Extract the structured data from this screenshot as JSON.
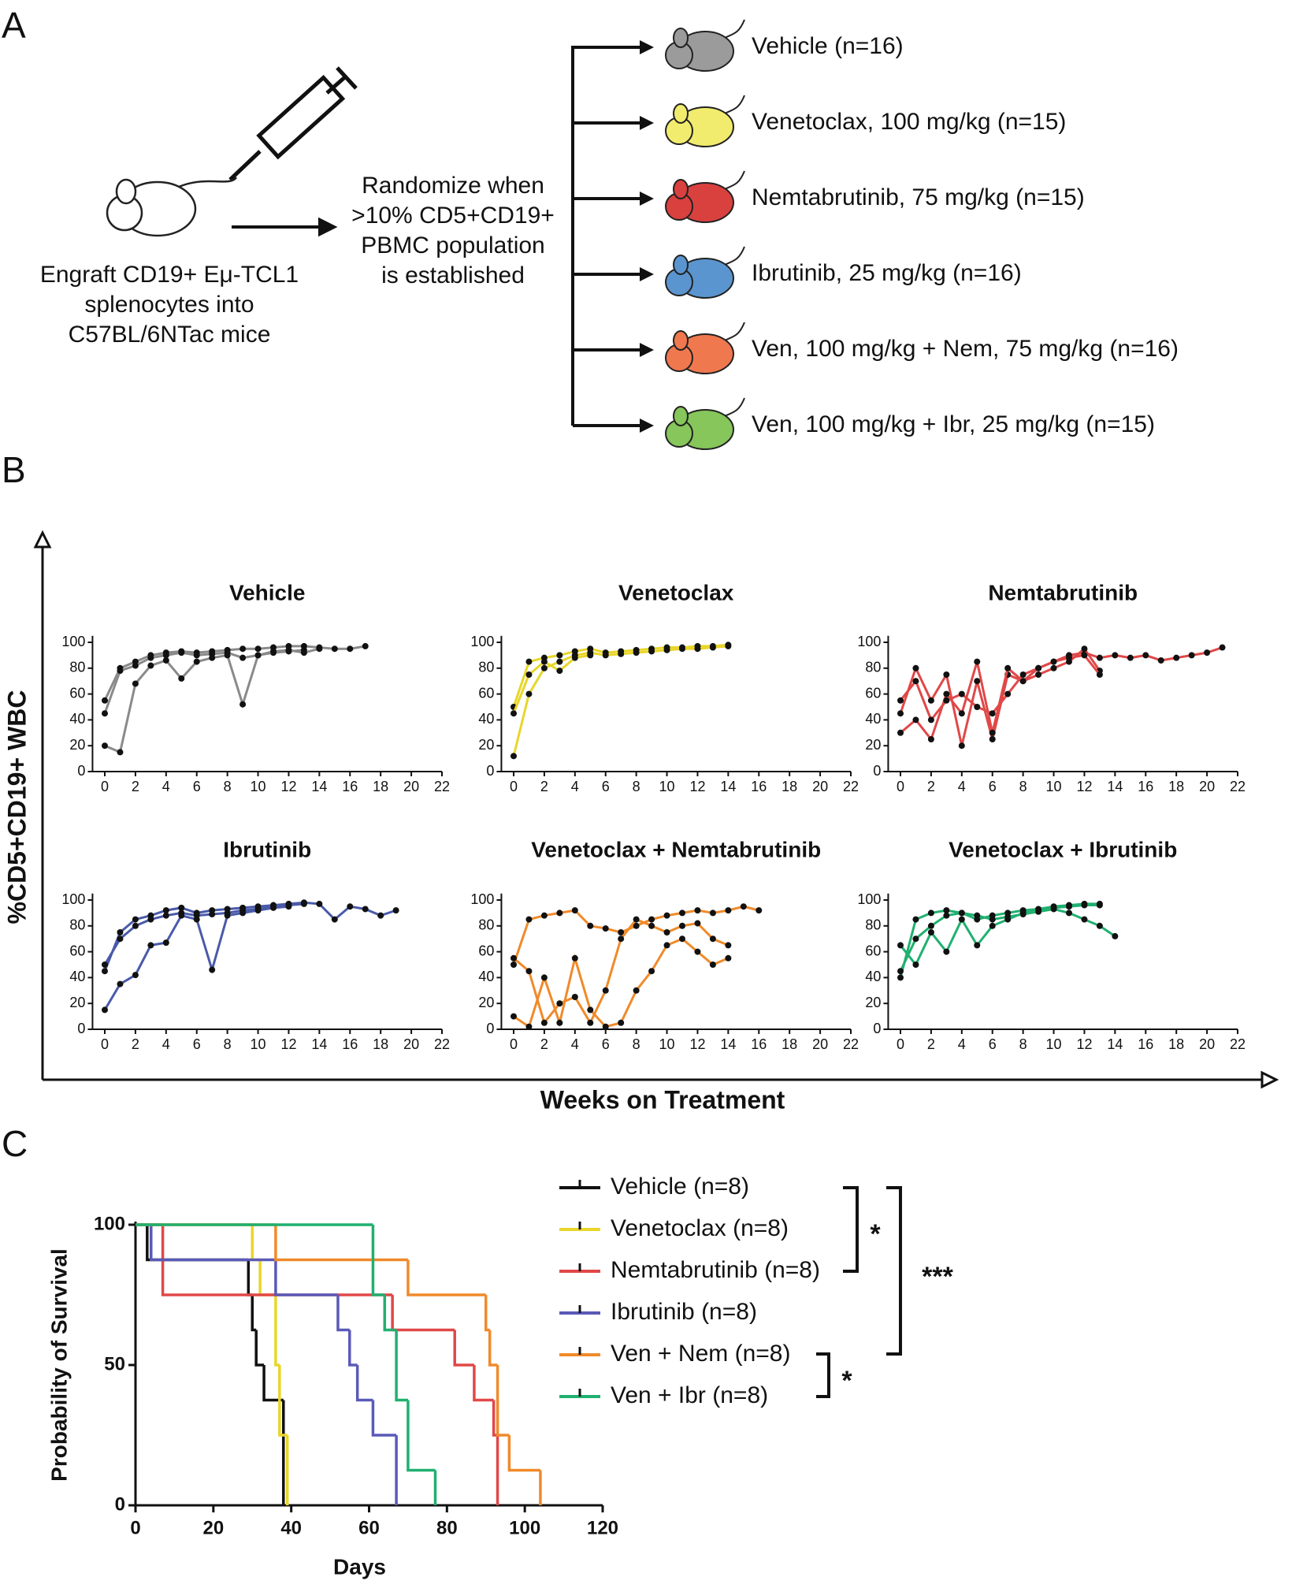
{
  "panel_labels": [
    "A",
    "B",
    "C"
  ],
  "diagram": {
    "engraft_lines": [
      "Engraft CD19+ Eμ-TCL1",
      "splenocytes into",
      "C57BL/6NTac mice"
    ],
    "randomize_lines": [
      "Randomize when",
      ">10% CD5+CD19+",
      "PBMC population",
      "is established"
    ],
    "groups": [
      {
        "label": "Vehicle (n=16)",
        "color": "#9b9b9b"
      },
      {
        "label": "Venetoclax, 100 mg/kg (n=15)",
        "color": "#f2ec6e"
      },
      {
        "label": "Nemtabrutinib, 75 mg/kg (n=15)",
        "color": "#d9413f"
      },
      {
        "label": "Ibrutinib, 25 mg/kg (n=16)",
        "color": "#5b95cf"
      },
      {
        "label": "Ven, 100 mg/kg + Nem, 75 mg/kg (n=16)",
        "color": "#f0784f"
      },
      {
        "label": "Ven, 100 mg/kg + Ibr, 25 mg/kg (n=15)",
        "color": "#86c65a"
      }
    ]
  },
  "panel_b": {
    "ylabel": "%CD5+CD19+ WBC",
    "xlabel": "Weeks on Treatment"
  },
  "chart_data": [
    {
      "type": "line",
      "title": "Vehicle",
      "color": "#8a8a8a",
      "xlim": [
        -0.8,
        22
      ],
      "ylim": [
        0,
        105
      ],
      "xticks": [
        0,
        2,
        4,
        6,
        8,
        10,
        12,
        14,
        16,
        18,
        20,
        22
      ],
      "yticks": [
        0,
        20,
        40,
        60,
        80,
        100
      ],
      "series": [
        {
          "x": [
            0,
            1,
            2,
            3,
            4,
            5,
            6,
            7,
            8,
            9,
            10,
            11,
            12,
            13,
            14,
            15,
            16,
            17
          ],
          "values": [
            55,
            80,
            85,
            90,
            92,
            93,
            92,
            93,
            94,
            95,
            95,
            96,
            97,
            97,
            96,
            95,
            95,
            97
          ]
        },
        {
          "x": [
            0,
            1,
            2,
            3,
            4,
            5,
            6,
            7,
            8,
            9,
            10,
            11,
            12,
            13
          ],
          "values": [
            20,
            15,
            68,
            82,
            86,
            72,
            85,
            88,
            90,
            52,
            90,
            92,
            93,
            94
          ]
        },
        {
          "x": [
            0,
            1,
            2,
            3,
            4,
            5,
            6,
            7,
            8,
            9,
            10,
            11,
            12,
            13,
            14
          ],
          "values": [
            45,
            78,
            82,
            88,
            90,
            92,
            90,
            91,
            92,
            88,
            90,
            93,
            94,
            92,
            95
          ]
        }
      ]
    },
    {
      "type": "line",
      "title": "Venetoclax",
      "color": "#e8d62a",
      "xlim": [
        -0.8,
        22
      ],
      "ylim": [
        0,
        105
      ],
      "xticks": [
        0,
        2,
        4,
        6,
        8,
        10,
        12,
        14,
        16,
        18,
        20,
        22
      ],
      "yticks": [
        0,
        20,
        40,
        60,
        80,
        100
      ],
      "series": [
        {
          "x": [
            0,
            1,
            2,
            3,
            4,
            5,
            6,
            7,
            8,
            9,
            10,
            11,
            12,
            13,
            14
          ],
          "values": [
            50,
            85,
            88,
            90,
            93,
            95,
            92,
            93,
            94,
            95,
            96,
            96,
            97,
            97,
            98
          ]
        },
        {
          "x": [
            0,
            1,
            2,
            3,
            4,
            5,
            6,
            7,
            8,
            9,
            10,
            11,
            12,
            13,
            14
          ],
          "values": [
            12,
            60,
            80,
            85,
            90,
            92,
            90,
            91,
            92,
            93,
            94,
            95,
            95,
            96,
            97
          ]
        },
        {
          "x": [
            0,
            1,
            2,
            3,
            4,
            5
          ],
          "values": [
            45,
            75,
            85,
            78,
            88,
            90
          ]
        }
      ]
    },
    {
      "type": "line",
      "title": "Nemtabrutinib",
      "color": "#e04848",
      "xlim": [
        -0.8,
        22
      ],
      "ylim": [
        0,
        105
      ],
      "xticks": [
        0,
        2,
        4,
        6,
        8,
        10,
        12,
        14,
        16,
        18,
        20,
        22
      ],
      "yticks": [
        0,
        20,
        40,
        60,
        80,
        100
      ],
      "series": [
        {
          "x": [
            0,
            1,
            2,
            3,
            4,
            5,
            6,
            7,
            8,
            9,
            10,
            11,
            12,
            13,
            14,
            15,
            16,
            17,
            18,
            19,
            20,
            21
          ],
          "values": [
            45,
            80,
            55,
            75,
            20,
            70,
            25,
            75,
            70,
            80,
            85,
            90,
            92,
            88,
            90,
            88,
            90,
            86,
            88,
            90,
            92,
            96
          ]
        },
        {
          "x": [
            0,
            1,
            2,
            3,
            4,
            5,
            6,
            7,
            8,
            9,
            10,
            11,
            12,
            13
          ],
          "values": [
            30,
            40,
            25,
            60,
            45,
            85,
            30,
            80,
            70,
            75,
            80,
            85,
            95,
            78
          ]
        },
        {
          "x": [
            0,
            1,
            2,
            3,
            4,
            5,
            6,
            7,
            8,
            9,
            10,
            11,
            12,
            13
          ],
          "values": [
            55,
            70,
            40,
            55,
            60,
            50,
            45,
            60,
            75,
            80,
            85,
            88,
            90,
            75
          ]
        }
      ]
    },
    {
      "type": "line",
      "title": "Ibrutinib",
      "color": "#4a5aaa",
      "xlim": [
        -0.8,
        22
      ],
      "ylim": [
        0,
        105
      ],
      "xticks": [
        0,
        2,
        4,
        6,
        8,
        10,
        12,
        14,
        16,
        18,
        20,
        22
      ],
      "yticks": [
        0,
        20,
        40,
        60,
        80,
        100
      ],
      "series": [
        {
          "x": [
            0,
            1,
            2,
            3,
            4,
            5,
            6,
            7,
            8,
            9,
            10,
            11,
            12,
            13,
            14,
            15,
            16,
            17,
            18,
            19
          ],
          "values": [
            45,
            75,
            85,
            88,
            92,
            94,
            90,
            92,
            93,
            94,
            95,
            96,
            97,
            98,
            97,
            85,
            95,
            93,
            88,
            92
          ]
        },
        {
          "x": [
            0,
            1,
            2,
            3,
            4,
            5,
            6,
            7,
            8,
            9,
            10,
            11,
            12
          ],
          "values": [
            15,
            35,
            42,
            65,
            67,
            88,
            85,
            46,
            88,
            90,
            92,
            94,
            95
          ]
        },
        {
          "x": [
            0,
            1,
            2,
            3,
            4,
            5,
            6,
            7,
            8,
            9,
            10,
            11,
            12,
            13
          ],
          "values": [
            50,
            70,
            80,
            85,
            88,
            90,
            88,
            89,
            90,
            92,
            93,
            95,
            96,
            97
          ]
        }
      ]
    },
    {
      "type": "line",
      "title": "Venetoclax + Nemtabrutinib",
      "color": "#f08a2a",
      "xlim": [
        -0.8,
        22
      ],
      "ylim": [
        0,
        105
      ],
      "xticks": [
        0,
        2,
        4,
        6,
        8,
        10,
        12,
        14,
        16,
        18,
        20,
        22
      ],
      "yticks": [
        0,
        20,
        40,
        60,
        80,
        100
      ],
      "series": [
        {
          "x": [
            0,
            1,
            2,
            3,
            4,
            5,
            6,
            7,
            8,
            9,
            10,
            11,
            12,
            13,
            14,
            15,
            16
          ],
          "values": [
            50,
            85,
            88,
            90,
            92,
            80,
            78,
            75,
            80,
            85,
            88,
            90,
            92,
            90,
            92,
            95,
            92
          ]
        },
        {
          "x": [
            0,
            1,
            2,
            3,
            4,
            5,
            6,
            7,
            8,
            9,
            10,
            11,
            12,
            13,
            14
          ],
          "values": [
            10,
            2,
            40,
            5,
            55,
            15,
            2,
            5,
            30,
            45,
            65,
            70,
            60,
            50,
            55
          ]
        },
        {
          "x": [
            0,
            1,
            2,
            3,
            4,
            5,
            6,
            7,
            8,
            9,
            10,
            11,
            12,
            13,
            14
          ],
          "values": [
            55,
            45,
            5,
            20,
            25,
            5,
            30,
            70,
            85,
            80,
            75,
            80,
            82,
            70,
            65
          ]
        }
      ]
    },
    {
      "type": "line",
      "title": "Venetoclax + Ibrutinib",
      "color": "#20b070",
      "xlim": [
        -0.8,
        22
      ],
      "ylim": [
        0,
        105
      ],
      "xticks": [
        0,
        2,
        4,
        6,
        8,
        10,
        12,
        14,
        16,
        18,
        20,
        22
      ],
      "yticks": [
        0,
        20,
        40,
        60,
        80,
        100
      ],
      "series": [
        {
          "x": [
            0,
            1,
            2,
            3,
            4,
            5,
            6,
            7,
            8,
            9,
            10,
            11,
            12,
            13,
            14
          ],
          "values": [
            40,
            85,
            90,
            92,
            90,
            88,
            85,
            87,
            89,
            91,
            93,
            90,
            85,
            80,
            72
          ]
        },
        {
          "x": [
            0,
            1,
            2,
            3,
            4,
            5,
            6,
            7,
            8,
            9,
            10,
            11,
            12,
            13
          ],
          "values": [
            65,
            50,
            75,
            60,
            85,
            65,
            80,
            85,
            90,
            92,
            94,
            95,
            96,
            96
          ]
        },
        {
          "x": [
            0,
            1,
            2,
            3,
            4,
            5,
            6,
            7,
            8,
            9,
            10,
            11,
            12,
            13
          ],
          "values": [
            45,
            70,
            80,
            88,
            90,
            85,
            88,
            90,
            92,
            93,
            95,
            96,
            97,
            97
          ]
        }
      ]
    },
    {
      "type": "step",
      "ylabel": "Probability of Survival",
      "xlabel": "Days",
      "xlim": [
        0,
        120
      ],
      "ylim": [
        0,
        100
      ],
      "xticks": [
        0,
        20,
        40,
        60,
        80,
        100,
        120
      ],
      "yticks": [
        0,
        50,
        100
      ],
      "annotations": [
        "*",
        "***",
        "*"
      ],
      "series": [
        {
          "name": "Vehicle (n=8)",
          "color": "#111111",
          "x": [
            0,
            3,
            29,
            30,
            31,
            33,
            38
          ],
          "values": [
            100,
            87.5,
            75,
            62.5,
            50,
            37.5,
            0
          ]
        },
        {
          "name": "Venetoclax (n=8)",
          "color": "#e8d62a",
          "x": [
            0,
            30,
            32,
            36,
            37,
            39
          ],
          "values": [
            100,
            87.5,
            75,
            50,
            25,
            0
          ]
        },
        {
          "name": "Nemtabrutinib (n=8)",
          "color": "#e04848",
          "x": [
            0,
            7,
            66,
            82,
            87,
            92,
            93
          ],
          "values": [
            100,
            75,
            62.5,
            50,
            37.5,
            25,
            0
          ]
        },
        {
          "name": "Ibrutinib (n=8)",
          "color": "#5a5ab8",
          "x": [
            0,
            4,
            36,
            52,
            55,
            57,
            61,
            67
          ],
          "values": [
            100,
            87.5,
            75,
            62.5,
            50,
            37.5,
            25,
            0
          ]
        },
        {
          "name": "Ven + Nem (n=8)",
          "color": "#f08a2a",
          "x": [
            0,
            36,
            70,
            90,
            91,
            93,
            96,
            104
          ],
          "values": [
            100,
            87.5,
            75,
            62.5,
            50,
            25,
            12.5,
            0
          ]
        },
        {
          "name": "Ven + Ibr (n=8)",
          "color": "#20b070",
          "x": [
            0,
            61,
            64,
            67,
            70,
            77
          ],
          "values": [
            100,
            75,
            62.5,
            37.5,
            12.5,
            0
          ]
        }
      ]
    }
  ]
}
